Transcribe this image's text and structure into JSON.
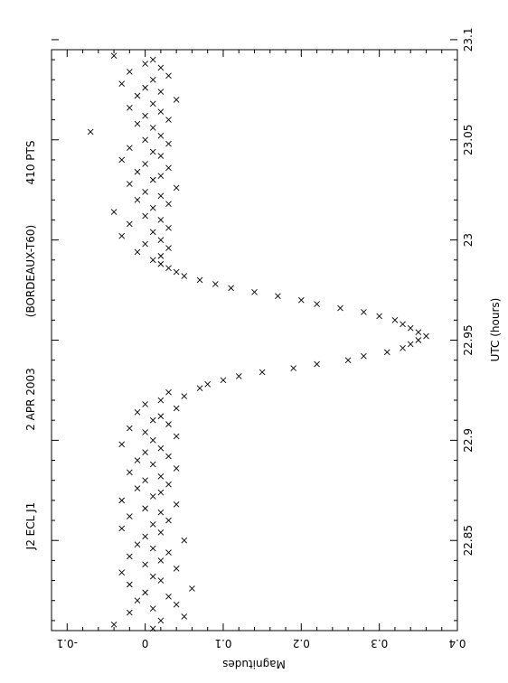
{
  "chart_data": {
    "type": "scatter",
    "marker": "x",
    "orientation": "rotated-90-clockwise",
    "header": [
      "J2 ECL J1",
      "2 APR 2003",
      "(BORDEAUX-T60)",
      "410 PTS"
    ],
    "xlabel": "UTC (hours)",
    "ylabel": "Magnitudes",
    "xlim": [
      22.805,
      23.095
    ],
    "ylim": [
      -0.12,
      0.4
    ],
    "y_inverted": true,
    "x_ticks": [
      "22.85",
      "22.9",
      "22.95",
      "23",
      "23.05",
      "23.1"
    ],
    "y_ticks": [
      "-0.1",
      "0",
      "0.1",
      "0.2",
      "0.3",
      "0.4"
    ],
    "grid": false,
    "series": [
      {
        "x": [
          22.806,
          22.808,
          22.81,
          22.812,
          22.814,
          22.816,
          22.818,
          22.82,
          22.822,
          22.824,
          22.826,
          22.828,
          22.83,
          22.832,
          22.834,
          22.836,
          22.838,
          22.84,
          22.842,
          22.844,
          22.846,
          22.848,
          22.85,
          22.852,
          22.854,
          22.856,
          22.858,
          22.86,
          22.862,
          22.864,
          22.866,
          22.868,
          22.87,
          22.872,
          22.874,
          22.876,
          22.878,
          22.88,
          22.882,
          22.884,
          22.886,
          22.888,
          22.89,
          22.892,
          22.894,
          22.896,
          22.898,
          22.9,
          22.902,
          22.904,
          22.906,
          22.908,
          22.91,
          22.912,
          22.914,
          22.916,
          22.918,
          22.92,
          22.922,
          22.924,
          22.926,
          22.928,
          22.93,
          22.932,
          22.934,
          22.936,
          22.938,
          22.94,
          22.942,
          22.944,
          22.946,
          22.948,
          22.95,
          22.952,
          22.954,
          22.956,
          22.958,
          22.96,
          22.962,
          22.964,
          22.966,
          22.968,
          22.97,
          22.972,
          22.974,
          22.976,
          22.978,
          22.98,
          22.982,
          22.984,
          22.986,
          22.988,
          22.99,
          22.992,
          22.994,
          22.996,
          22.998,
          23.0,
          23.002,
          23.004,
          23.006,
          23.008,
          23.01,
          23.012,
          23.014,
          23.016,
          23.018,
          23.02,
          23.022,
          23.024,
          23.026,
          23.028,
          23.03,
          23.032,
          23.034,
          23.036,
          23.038,
          23.04,
          23.042,
          23.044,
          23.046,
          23.048,
          23.05,
          23.052,
          23.054,
          23.056,
          23.058,
          23.06,
          23.062,
          23.064,
          23.066,
          23.068,
          23.07,
          23.072,
          23.074,
          23.076,
          23.078,
          23.08,
          23.082,
          23.084,
          23.086,
          23.088,
          23.09,
          23.092
        ],
        "y": [
          0.01,
          -0.04,
          0.02,
          0.05,
          -0.02,
          0.01,
          0.04,
          -0.01,
          0.03,
          0.0,
          0.06,
          -0.02,
          0.02,
          0.01,
          -0.03,
          0.04,
          0.0,
          0.02,
          -0.02,
          0.03,
          0.01,
          -0.01,
          0.05,
          0.0,
          0.02,
          -0.03,
          0.01,
          0.03,
          -0.02,
          0.02,
          0.0,
          0.04,
          -0.03,
          0.01,
          0.02,
          -0.01,
          0.03,
          0.0,
          0.02,
          -0.02,
          0.04,
          0.01,
          -0.01,
          0.03,
          0.0,
          0.02,
          -0.03,
          0.01,
          0.04,
          0.0,
          -0.02,
          0.03,
          0.01,
          0.02,
          -0.01,
          0.04,
          0.0,
          0.02,
          0.05,
          0.03,
          0.07,
          0.08,
          0.1,
          0.12,
          0.15,
          0.19,
          0.22,
          0.26,
          0.28,
          0.31,
          0.33,
          0.34,
          0.35,
          0.36,
          0.35,
          0.34,
          0.33,
          0.32,
          0.3,
          0.28,
          0.25,
          0.22,
          0.2,
          0.17,
          0.14,
          0.11,
          0.09,
          0.07,
          0.05,
          0.04,
          0.03,
          0.02,
          0.01,
          0.02,
          -0.01,
          0.03,
          0.0,
          0.02,
          -0.03,
          0.01,
          0.03,
          -0.02,
          0.02,
          0.0,
          -0.04,
          0.01,
          0.03,
          -0.01,
          0.02,
          0.0,
          0.04,
          -0.02,
          0.01,
          0.02,
          -0.01,
          0.03,
          0.0,
          -0.03,
          0.02,
          0.01,
          -0.02,
          0.03,
          0.0,
          0.02,
          -0.07,
          0.01,
          -0.01,
          0.03,
          0.0,
          0.02,
          -0.02,
          0.01,
          0.04,
          -0.01,
          0.02,
          0.0,
          -0.03,
          0.01,
          0.03,
          -0.02,
          0.02,
          0.0,
          0.01,
          -0.04
        ]
      }
    ]
  }
}
